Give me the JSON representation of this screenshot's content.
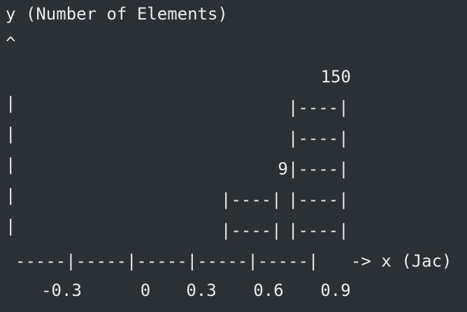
{
  "chart_data": {
    "type": "bar",
    "title": "",
    "ylabel": "y (Number of Elements)",
    "y_axis_arrow": "^",
    "xlabel": "-> x (Jac)",
    "x_ticks": [
      "-0.3",
      "0",
      "0.3",
      "0.6",
      "0.9"
    ],
    "bars": [
      {
        "value_label": "9",
        "rows": 2,
        "outline": [
          "|----|",
          "|----|"
        ]
      },
      {
        "value_label": "150",
        "rows": 5,
        "outline": [
          "|----|",
          "|----|",
          "|----|",
          "|----|",
          "|----|"
        ]
      }
    ],
    "y_axis_rows": [
      "|",
      "|",
      "|",
      "|",
      "|"
    ],
    "x_axis_line": "-----|-----|-----|-----|-----|",
    "grid": false,
    "legend": "none"
  },
  "colors": {
    "background": "#2b3035",
    "text": "#e9edf0"
  }
}
